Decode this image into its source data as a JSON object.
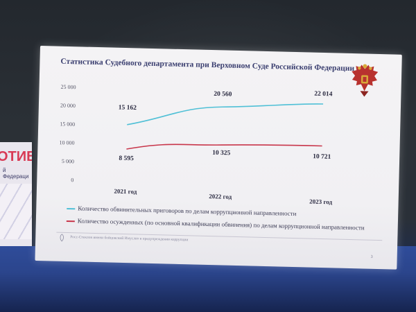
{
  "slide": {
    "title": "Статистика Судебного департамента при Верховном Суде Российской Федерации",
    "emblem_icon": "double-headed-eagle-emblem",
    "footer": "Росс-Стеклов имени бойцовский Имуслит в предупреждения коррупции",
    "page_number": "3"
  },
  "background": {
    "banner_text": "ОТИВ",
    "banner_subtext": "й Федераци"
  },
  "colors": {
    "series1": "#4fc0d6",
    "series2": "#c8354a",
    "title": "#3b3f70",
    "tick": "#555566"
  },
  "chart_data": {
    "type": "line",
    "categories": [
      "2021 год",
      "2022 год",
      "2023 год"
    ],
    "ylim": [
      0,
      25000
    ],
    "yticks": [
      "0",
      "5 000",
      "10 000",
      "15 000",
      "20 000",
      "25 000"
    ],
    "ytick_values": [
      0,
      5000,
      10000,
      15000,
      20000,
      25000
    ],
    "grid": false,
    "legend_position": "bottom",
    "series": [
      {
        "name": "Количество обвинительных приговоров по делам коррупционной направленности",
        "values": [
          15162,
          20560,
          22014
        ],
        "labels": [
          "15 162",
          "20 560",
          "22 014"
        ]
      },
      {
        "name": "Количество осужденных (по основной квалификации обвинения) по делам коррупционной направленности",
        "values": [
          8595,
          10325,
          10721
        ],
        "labels": [
          "8 595",
          "10 325",
          "10 721"
        ]
      }
    ]
  }
}
